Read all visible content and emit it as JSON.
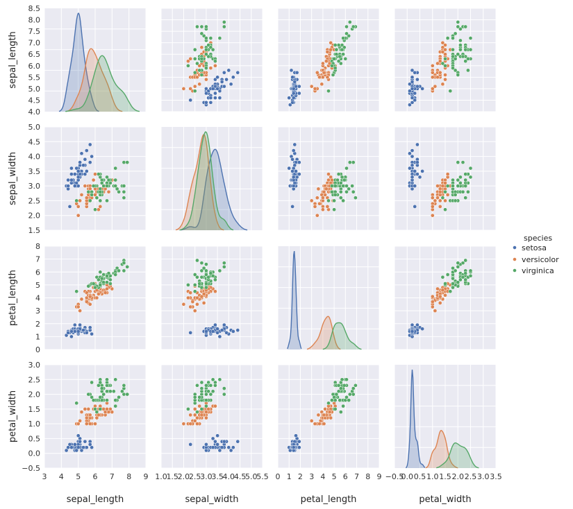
{
  "chart_data": {
    "type": "scatter",
    "subtype": "pairplot",
    "variables": [
      "sepal_length",
      "sepal_width",
      "petal_length",
      "petal_width"
    ],
    "diagonal_kind": "kde",
    "axis_ranges": {
      "sepal_length": [
        3,
        9
      ],
      "sepal_width": [
        1,
        5.5
      ],
      "petal_length": [
        0,
        9
      ],
      "petal_width": [
        -0.5,
        3.5
      ]
    },
    "y_axis_ranges": {
      "sepal_length": [
        4.0,
        8.5
      ],
      "sepal_width": [
        1.5,
        5.0
      ],
      "petal_length": [
        0,
        8
      ],
      "petal_width": [
        -0.5,
        3.0
      ]
    },
    "x_ticks": {
      "sepal_length": [
        "3",
        "4",
        "5",
        "6",
        "7",
        "8",
        "9"
      ],
      "sepal_width": [
        "1.0",
        "1.5",
        "2.0",
        "2.5",
        "3.0",
        "3.5",
        "4.0",
        "4.5",
        "5.0",
        "5.5"
      ],
      "petal_length": [
        "0",
        "1",
        "2",
        "3",
        "4",
        "5",
        "6",
        "7",
        "8",
        "9"
      ],
      "petal_width": [
        "−0.5",
        "0.0",
        "0.5",
        "1.0",
        "1.5",
        "2.0",
        "2.5",
        "3.0",
        "3.5"
      ]
    },
    "y_ticks": {
      "sepal_length": [
        "4.0",
        "4.5",
        "5.0",
        "5.5",
        "6.0",
        "6.5",
        "7.0",
        "7.5",
        "8.0",
        "8.5"
      ],
      "sepal_width": [
        "1.5",
        "2.0",
        "2.5",
        "3.0",
        "3.5",
        "4.0",
        "4.5",
        "5.0"
      ],
      "petal_length": [
        "0",
        "1",
        "2",
        "3",
        "4",
        "5",
        "6",
        "7",
        "8"
      ],
      "petal_width": [
        "−0.5",
        "0.0",
        "0.5",
        "1.0",
        "1.5",
        "2.0",
        "2.5",
        "3.0"
      ]
    },
    "legend": {
      "title": "species",
      "position": "right",
      "entries": [
        "setosa",
        "versicolor",
        "virginica"
      ]
    },
    "colors": {
      "setosa": "#4c72b0",
      "versicolor": "#dd8452",
      "virginica": "#55a868",
      "panel_bg": "#eaeaf2",
      "grid": "#ffffff"
    },
    "series": [
      {
        "name": "setosa",
        "rows": [
          [
            5.1,
            3.5,
            1.4,
            0.2
          ],
          [
            4.9,
            3.0,
            1.4,
            0.2
          ],
          [
            4.7,
            3.2,
            1.3,
            0.2
          ],
          [
            4.6,
            3.1,
            1.5,
            0.2
          ],
          [
            5.0,
            3.6,
            1.4,
            0.2
          ],
          [
            5.4,
            3.9,
            1.7,
            0.4
          ],
          [
            4.6,
            3.4,
            1.4,
            0.3
          ],
          [
            5.0,
            3.4,
            1.5,
            0.2
          ],
          [
            4.4,
            2.9,
            1.4,
            0.2
          ],
          [
            4.9,
            3.1,
            1.5,
            0.1
          ],
          [
            5.4,
            3.7,
            1.5,
            0.2
          ],
          [
            4.8,
            3.4,
            1.6,
            0.2
          ],
          [
            4.8,
            3.0,
            1.4,
            0.1
          ],
          [
            4.3,
            3.0,
            1.1,
            0.1
          ],
          [
            5.8,
            4.0,
            1.2,
            0.2
          ],
          [
            5.7,
            4.4,
            1.5,
            0.4
          ],
          [
            5.4,
            3.9,
            1.3,
            0.4
          ],
          [
            5.1,
            3.5,
            1.4,
            0.3
          ],
          [
            5.7,
            3.8,
            1.7,
            0.3
          ],
          [
            5.1,
            3.8,
            1.5,
            0.3
          ],
          [
            5.4,
            3.4,
            1.7,
            0.2
          ],
          [
            5.1,
            3.7,
            1.5,
            0.4
          ],
          [
            4.6,
            3.6,
            1.0,
            0.2
          ],
          [
            5.1,
            3.3,
            1.7,
            0.5
          ],
          [
            4.8,
            3.4,
            1.9,
            0.2
          ],
          [
            5.0,
            3.0,
            1.6,
            0.2
          ],
          [
            5.0,
            3.4,
            1.6,
            0.4
          ],
          [
            5.2,
            3.5,
            1.5,
            0.2
          ],
          [
            5.2,
            3.4,
            1.4,
            0.2
          ],
          [
            4.7,
            3.2,
            1.6,
            0.2
          ],
          [
            4.8,
            3.1,
            1.6,
            0.2
          ],
          [
            5.4,
            3.4,
            1.5,
            0.4
          ],
          [
            5.2,
            4.1,
            1.5,
            0.1
          ],
          [
            5.5,
            4.2,
            1.4,
            0.2
          ],
          [
            4.9,
            3.1,
            1.5,
            0.2
          ],
          [
            5.0,
            3.2,
            1.2,
            0.2
          ],
          [
            5.5,
            3.5,
            1.3,
            0.2
          ],
          [
            4.9,
            3.6,
            1.4,
            0.1
          ],
          [
            4.4,
            3.0,
            1.3,
            0.2
          ],
          [
            5.1,
            3.4,
            1.5,
            0.2
          ],
          [
            5.0,
            3.5,
            1.3,
            0.3
          ],
          [
            4.5,
            2.3,
            1.3,
            0.3
          ],
          [
            4.4,
            3.2,
            1.3,
            0.2
          ],
          [
            5.0,
            3.5,
            1.6,
            0.6
          ],
          [
            5.1,
            3.8,
            1.9,
            0.4
          ],
          [
            4.8,
            3.0,
            1.4,
            0.3
          ],
          [
            5.1,
            3.8,
            1.6,
            0.2
          ],
          [
            4.6,
            3.2,
            1.4,
            0.2
          ],
          [
            5.3,
            3.7,
            1.5,
            0.2
          ],
          [
            5.0,
            3.3,
            1.4,
            0.2
          ]
        ]
      },
      {
        "name": "versicolor",
        "rows": [
          [
            7.0,
            3.2,
            4.7,
            1.4
          ],
          [
            6.4,
            3.2,
            4.5,
            1.5
          ],
          [
            6.9,
            3.1,
            4.9,
            1.5
          ],
          [
            5.5,
            2.3,
            4.0,
            1.3
          ],
          [
            6.5,
            2.8,
            4.6,
            1.5
          ],
          [
            5.7,
            2.8,
            4.5,
            1.3
          ],
          [
            6.3,
            3.3,
            4.7,
            1.6
          ],
          [
            4.9,
            2.4,
            3.3,
            1.0
          ],
          [
            6.6,
            2.9,
            4.6,
            1.3
          ],
          [
            5.2,
            2.7,
            3.9,
            1.4
          ],
          [
            5.0,
            2.0,
            3.5,
            1.0
          ],
          [
            5.9,
            3.0,
            4.2,
            1.5
          ],
          [
            6.0,
            2.2,
            4.0,
            1.0
          ],
          [
            6.1,
            2.9,
            4.7,
            1.4
          ],
          [
            5.6,
            2.9,
            3.6,
            1.3
          ],
          [
            6.7,
            3.1,
            4.4,
            1.4
          ],
          [
            5.6,
            3.0,
            4.5,
            1.5
          ],
          [
            5.8,
            2.7,
            4.1,
            1.0
          ],
          [
            6.2,
            2.2,
            4.5,
            1.5
          ],
          [
            5.6,
            2.5,
            3.9,
            1.1
          ],
          [
            5.9,
            3.2,
            4.8,
            1.8
          ],
          [
            6.1,
            2.8,
            4.0,
            1.3
          ],
          [
            6.3,
            2.5,
            4.9,
            1.5
          ],
          [
            6.1,
            2.8,
            4.7,
            1.2
          ],
          [
            6.4,
            2.9,
            4.3,
            1.3
          ],
          [
            6.6,
            3.0,
            4.4,
            1.4
          ],
          [
            6.8,
            2.8,
            4.8,
            1.4
          ],
          [
            6.7,
            3.0,
            5.0,
            1.7
          ],
          [
            6.0,
            2.9,
            4.5,
            1.5
          ],
          [
            5.7,
            2.6,
            3.5,
            1.0
          ],
          [
            5.5,
            2.4,
            3.8,
            1.1
          ],
          [
            5.5,
            2.4,
            3.7,
            1.0
          ],
          [
            5.8,
            2.7,
            3.9,
            1.2
          ],
          [
            6.0,
            2.7,
            5.1,
            1.6
          ],
          [
            5.4,
            3.0,
            4.5,
            1.5
          ],
          [
            6.0,
            3.4,
            4.5,
            1.6
          ],
          [
            6.7,
            3.1,
            4.7,
            1.5
          ],
          [
            6.3,
            2.3,
            4.4,
            1.3
          ],
          [
            5.6,
            3.0,
            4.1,
            1.3
          ],
          [
            5.5,
            2.5,
            4.0,
            1.3
          ],
          [
            5.5,
            2.6,
            4.4,
            1.2
          ],
          [
            6.1,
            3.0,
            4.6,
            1.4
          ],
          [
            5.8,
            2.6,
            4.0,
            1.2
          ],
          [
            5.0,
            2.3,
            3.3,
            1.0
          ],
          [
            5.6,
            2.7,
            4.2,
            1.3
          ],
          [
            5.7,
            3.0,
            4.2,
            1.2
          ],
          [
            5.7,
            2.9,
            4.2,
            1.3
          ],
          [
            6.2,
            2.9,
            4.3,
            1.3
          ],
          [
            5.1,
            2.5,
            3.0,
            1.1
          ],
          [
            5.7,
            2.8,
            4.1,
            1.3
          ]
        ]
      },
      {
        "name": "virginica",
        "rows": [
          [
            6.3,
            3.3,
            6.0,
            2.5
          ],
          [
            5.8,
            2.7,
            5.1,
            1.9
          ],
          [
            7.1,
            3.0,
            5.9,
            2.1
          ],
          [
            6.3,
            2.9,
            5.6,
            1.8
          ],
          [
            6.5,
            3.0,
            5.8,
            2.2
          ],
          [
            7.6,
            3.0,
            6.6,
            2.1
          ],
          [
            4.9,
            2.5,
            4.5,
            1.7
          ],
          [
            7.3,
            2.9,
            6.3,
            1.8
          ],
          [
            6.7,
            2.5,
            5.8,
            1.8
          ],
          [
            7.2,
            3.6,
            6.1,
            2.5
          ],
          [
            6.5,
            3.2,
            5.1,
            2.0
          ],
          [
            6.4,
            2.7,
            5.3,
            1.9
          ],
          [
            6.8,
            3.0,
            5.5,
            2.1
          ],
          [
            5.7,
            2.5,
            5.0,
            2.0
          ],
          [
            5.8,
            2.8,
            5.1,
            2.4
          ],
          [
            6.4,
            3.2,
            5.3,
            2.3
          ],
          [
            6.5,
            3.0,
            5.5,
            1.8
          ],
          [
            7.7,
            3.8,
            6.7,
            2.2
          ],
          [
            7.7,
            2.6,
            6.9,
            2.3
          ],
          [
            6.0,
            2.2,
            5.0,
            1.5
          ],
          [
            6.9,
            3.2,
            5.7,
            2.3
          ],
          [
            5.6,
            2.8,
            4.9,
            2.0
          ],
          [
            7.7,
            2.8,
            6.7,
            2.0
          ],
          [
            6.3,
            2.7,
            4.9,
            1.8
          ],
          [
            6.7,
            3.3,
            5.7,
            2.1
          ],
          [
            7.2,
            3.2,
            6.0,
            1.8
          ],
          [
            6.2,
            2.8,
            4.8,
            1.8
          ],
          [
            6.1,
            3.0,
            4.9,
            1.8
          ],
          [
            6.4,
            2.8,
            5.6,
            2.1
          ],
          [
            7.2,
            3.0,
            5.8,
            1.6
          ],
          [
            7.4,
            2.8,
            6.1,
            1.9
          ],
          [
            7.9,
            3.8,
            6.4,
            2.0
          ],
          [
            6.4,
            2.8,
            5.6,
            2.2
          ],
          [
            6.3,
            2.8,
            5.1,
            1.5
          ],
          [
            6.1,
            2.6,
            5.6,
            1.4
          ],
          [
            7.7,
            3.0,
            6.1,
            2.3
          ],
          [
            6.3,
            3.4,
            5.6,
            2.4
          ],
          [
            6.4,
            3.1,
            5.5,
            1.8
          ],
          [
            6.0,
            3.0,
            4.8,
            1.8
          ],
          [
            6.9,
            3.1,
            5.4,
            2.1
          ],
          [
            6.7,
            3.1,
            5.6,
            2.4
          ],
          [
            6.9,
            3.1,
            5.1,
            2.3
          ],
          [
            5.8,
            2.7,
            5.1,
            1.9
          ],
          [
            6.8,
            3.2,
            5.9,
            2.3
          ],
          [
            6.7,
            3.3,
            5.7,
            2.5
          ],
          [
            6.7,
            3.0,
            5.2,
            2.3
          ],
          [
            6.3,
            2.5,
            5.0,
            1.9
          ],
          [
            6.5,
            3.0,
            5.2,
            2.0
          ],
          [
            6.2,
            3.4,
            5.4,
            2.3
          ],
          [
            5.9,
            3.0,
            5.1,
            1.8
          ]
        ]
      }
    ]
  }
}
